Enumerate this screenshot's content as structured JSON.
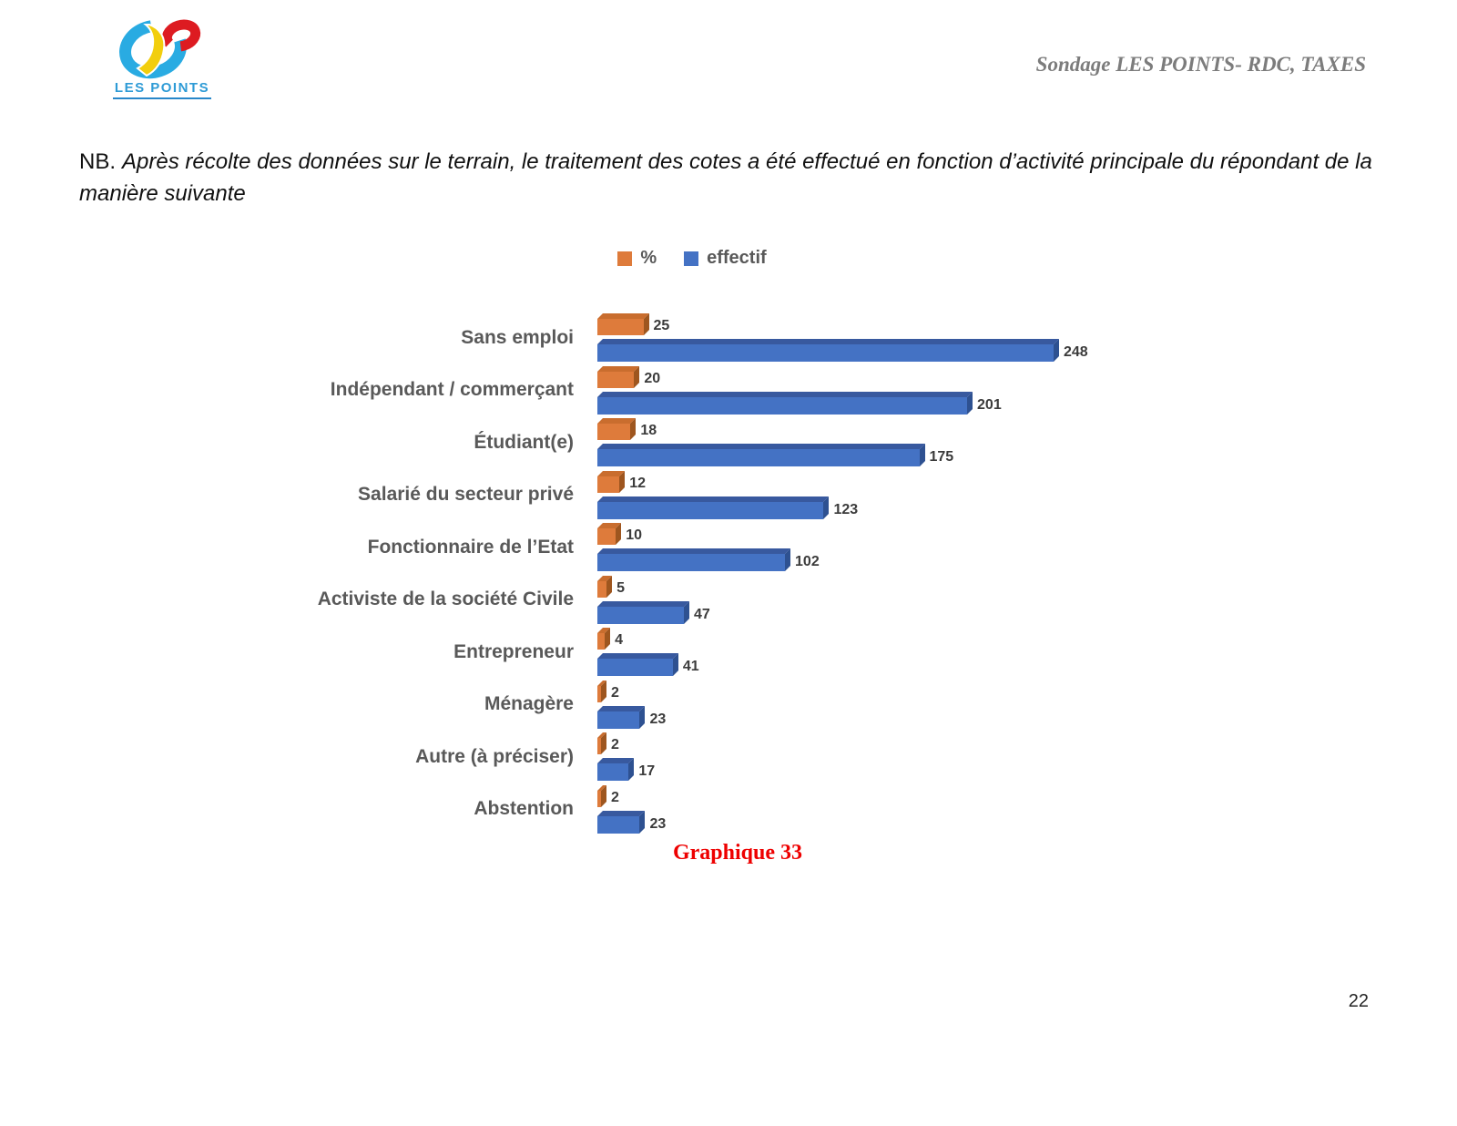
{
  "logo": {
    "text": "LES POINTS"
  },
  "header": {
    "title": "Sondage LES POINTS- RDC, TAXES"
  },
  "note": {
    "label": "NB.",
    "text": "Après récolte des données sur le terrain, le traitement des cotes a été effectué en fonction d’activité principale du répondant de la manière suivante"
  },
  "caption": "Graphique 33",
  "page_number": "22",
  "colors": {
    "percent_orange": "#DE7B3B",
    "percent_orange_top": "#C96D2E",
    "percent_orange_side": "#9E561F",
    "effectif_blue": "#4472C4",
    "effectif_blue_top": "#38599F",
    "effectif_blue_side": "#2E5191",
    "caption_red": "#EE0000",
    "label_gray": "#595959",
    "logo_blue": "#29ABE2",
    "logo_red": "#DD1B21",
    "logo_yellow": "#F2CE0D"
  },
  "chart_data": {
    "type": "bar",
    "orientation": "horizontal",
    "title": "",
    "legend_position": "top",
    "data_labels": true,
    "grid": false,
    "xlim": [
      0,
      260
    ],
    "categories": [
      "Sans emploi",
      "Indépendant / commerçant",
      "Étudiant(e)",
      "Salarié du secteur privé",
      "Fonctionnaire de l’Etat",
      "Activiste de la société Civile",
      "Entrepreneur",
      "Ménagère",
      "Autre (à préciser)",
      "Abstention"
    ],
    "series": [
      {
        "name": "%",
        "color": "#DE7B3B",
        "values": [
          25,
          20,
          18,
          12,
          10,
          5,
          4,
          2,
          2,
          2
        ]
      },
      {
        "name": "effectif",
        "color": "#4472C4",
        "values": [
          248,
          201,
          175,
          123,
          102,
          47,
          41,
          23,
          17,
          23
        ]
      }
    ]
  }
}
